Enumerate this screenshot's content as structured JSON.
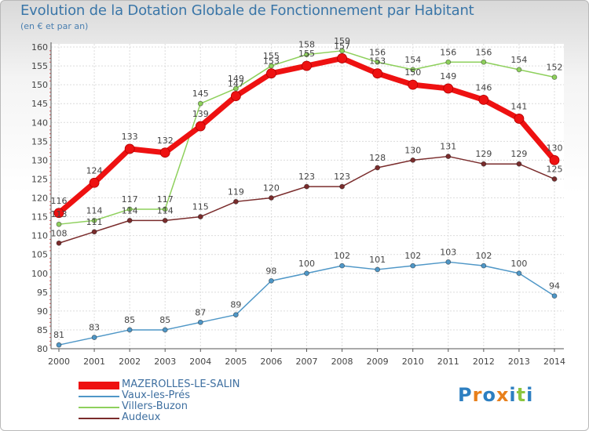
{
  "title": "Evolution de la Dotation Globale de Fonctionnement par Habitant",
  "subtitle": "(en € et par an)",
  "logo_text": "Proxiti",
  "chart_data": {
    "type": "line",
    "title": "Evolution de la Dotation Globale de Fonctionnement par Habitant",
    "ylabel": "(en € et par an)",
    "xlabel": "",
    "ylim": [
      80,
      160
    ],
    "yticks": [
      80,
      85,
      90,
      95,
      100,
      105,
      110,
      115,
      120,
      125,
      130,
      135,
      140,
      145,
      150,
      155,
      160
    ],
    "grid": true,
    "legend": "bottom-left",
    "x": [
      "2000",
      "2001",
      "2002",
      "2003",
      "2004",
      "2005",
      "2006",
      "2007",
      "2008",
      "2009",
      "2010",
      "2011",
      "2012",
      "2013",
      "2014"
    ],
    "series": [
      {
        "name": "MAZEROLLES-LE-SALIN",
        "color": "#ee1111",
        "emphasis": true,
        "values": [
          116,
          124,
          133,
          132,
          139,
          147,
          153,
          155,
          157,
          153,
          150,
          149,
          146,
          141,
          130
        ]
      },
      {
        "name": "Vaux-les-Prés",
        "color": "#4f97c7",
        "emphasis": false,
        "values": [
          81,
          83,
          85,
          85,
          87,
          89,
          98,
          100,
          102,
          101,
          102,
          103,
          102,
          100,
          94
        ]
      },
      {
        "name": "Villers-Buzon",
        "color": "#8ed05c",
        "emphasis": false,
        "values": [
          113,
          114,
          117,
          117,
          145,
          149,
          155,
          158,
          159,
          156,
          154,
          156,
          156,
          154,
          152
        ]
      },
      {
        "name": "Audeux",
        "color": "#7a2c2c",
        "emphasis": false,
        "values": [
          108,
          111,
          114,
          114,
          115,
          119,
          120,
          123,
          123,
          128,
          130,
          131,
          129,
          129,
          125
        ]
      }
    ]
  }
}
